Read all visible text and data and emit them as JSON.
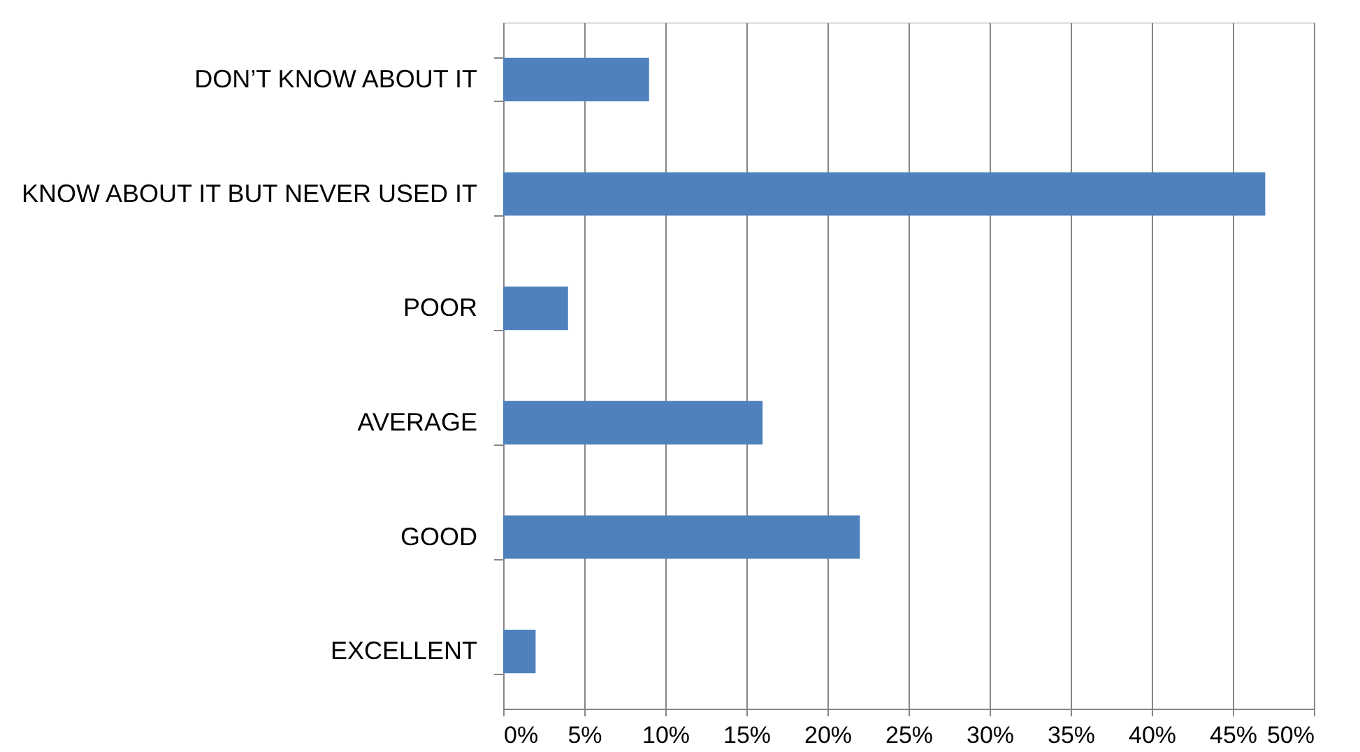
{
  "chart_data": {
    "type": "bar",
    "orientation": "horizontal",
    "categories": [
      "DON’T KNOW ABOUT IT",
      "KNOW ABOUT IT BUT NEVER USED IT",
      "POOR",
      "AVERAGE",
      "GOOD",
      "EXCELLENT"
    ],
    "values": [
      9,
      47,
      4,
      16,
      22,
      2
    ],
    "color": "#4f81bd",
    "xlim": [
      0,
      50
    ],
    "xticks": [
      {
        "value": 0,
        "label": "0%"
      },
      {
        "value": 5,
        "label": "5%"
      },
      {
        "value": 10,
        "label": "10%"
      },
      {
        "value": 15,
        "label": "15%"
      },
      {
        "value": 20,
        "label": "20%"
      },
      {
        "value": 25,
        "label": "25%"
      },
      {
        "value": 30,
        "label": "30%"
      },
      {
        "value": 35,
        "label": "35%"
      },
      {
        "value": 40,
        "label": "40%"
      },
      {
        "value": 45,
        "label": "45%"
      },
      {
        "value": 50,
        "label": "50%"
      }
    ],
    "grid": "x"
  }
}
